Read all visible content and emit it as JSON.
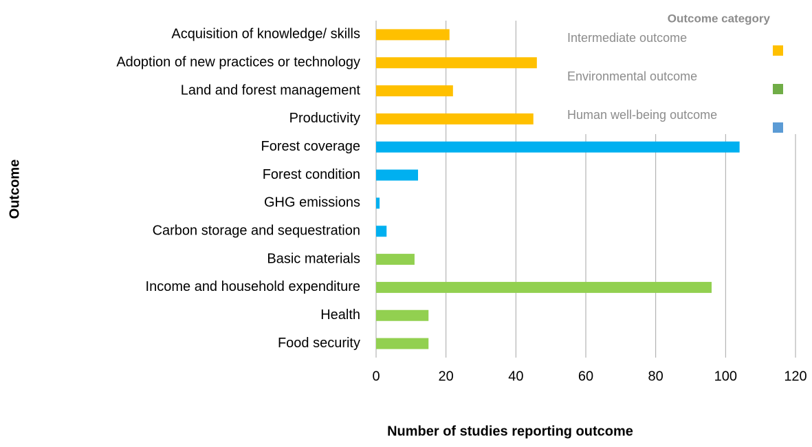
{
  "chart_data": {
    "type": "bar",
    "orientation": "horizontal",
    "categories": [
      "Acquisition of knowledge/ skills",
      "Adoption of new practices or technology",
      "Land and forest management",
      "Productivity",
      "Forest coverage",
      "Forest condition",
      "GHG emissions",
      "Carbon storage and sequestration",
      "Basic materials",
      "Income and household expenditure",
      "Health",
      "Food security"
    ],
    "values": [
      21,
      46,
      22,
      45,
      104,
      12,
      1,
      3,
      11,
      96,
      15,
      15
    ],
    "colors": [
      "#ffc000",
      "#ffc000",
      "#ffc000",
      "#ffc000",
      "#00b0f0",
      "#00b0f0",
      "#00b0f0",
      "#00b0f0",
      "#92d050",
      "#92d050",
      "#92d050",
      "#92d050"
    ],
    "xlabel": "Number of studies reporting outcome",
    "ylabel": "Outcome",
    "xlim": [
      0,
      120
    ],
    "xticks": [
      0,
      20,
      40,
      60,
      80,
      100,
      120
    ],
    "grid": true,
    "legend": {
      "title": "Outcome category",
      "position": "upper right",
      "entries": [
        {
          "name": "Intermediate outcome",
          "color": "#ffc000"
        },
        {
          "name": "Environmental outcome",
          "color": "#70ad47"
        },
        {
          "name": "Human well-being outcome",
          "color": "#5b9bd5"
        }
      ]
    }
  }
}
